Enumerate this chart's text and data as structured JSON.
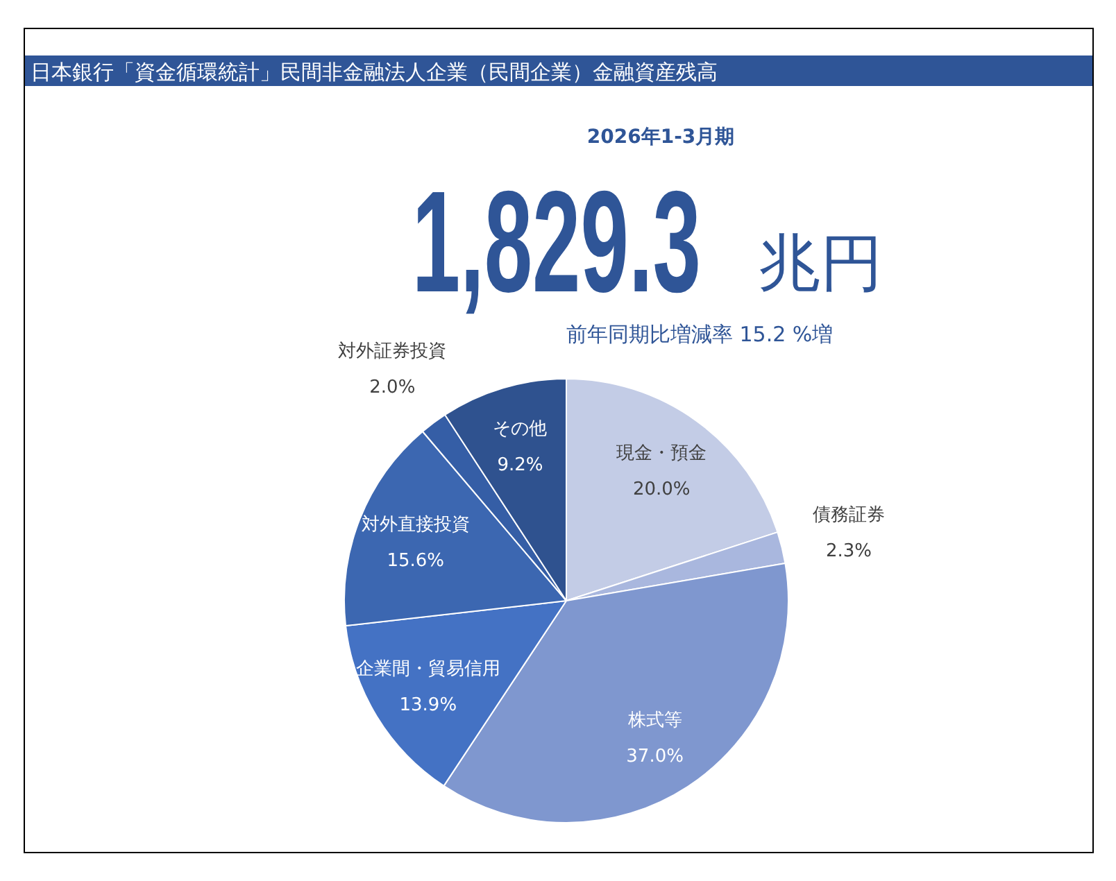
{
  "chart_data": {
    "type": "pie",
    "title": "日本銀行「資金循環統計」民間非金融法人企業（民間企業）金融資産残高",
    "subtitle": "2026年1-3月期",
    "categories": [
      "現金・預金",
      "債務証券",
      "株式等",
      "企業間・貿易信用",
      "対外直接投資",
      "対外証券投資",
      "その他"
    ],
    "values": [
      20.0,
      2.3,
      37.0,
      13.9,
      15.6,
      2.0,
      9.2
    ],
    "colors": [
      "#c3cce6",
      "#a9b7de",
      "#7f97cf",
      "#4472c4",
      "#3c67b1",
      "#355ea6",
      "#2f528f"
    ],
    "value_labels": [
      "20.0%",
      "2.3%",
      "37.0%",
      "13.9%",
      "15.6%",
      "2.0%",
      "9.2%"
    ],
    "annotations": [
      "1,829.3",
      "兆円",
      "前年同期比増減率 15.2 %増"
    ]
  }
}
